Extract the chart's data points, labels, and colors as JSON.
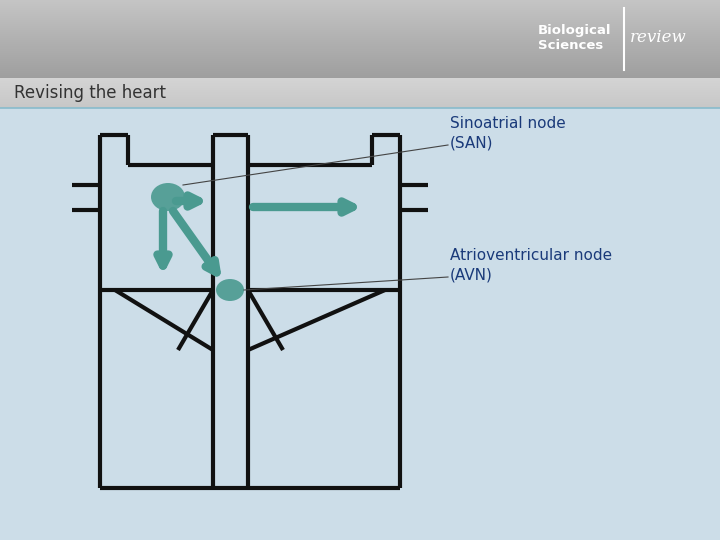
{
  "title": "Revising the heart",
  "san_label": "Sinoatrial node\n(SAN)",
  "avn_label": "Atrioventricular node\n(AVN)",
  "bg_color": "#ccdde8",
  "header_color_top": "#aaaaaa",
  "header_color_bot": "#cccccc",
  "subheader_color": "#d0d4d8",
  "teal_color": "#4a9a90",
  "node_color": "#4a9a90",
  "line_color": "#111111",
  "title_color": "#333333",
  "label_color": "#1a3a7a",
  "lw": 3.0
}
